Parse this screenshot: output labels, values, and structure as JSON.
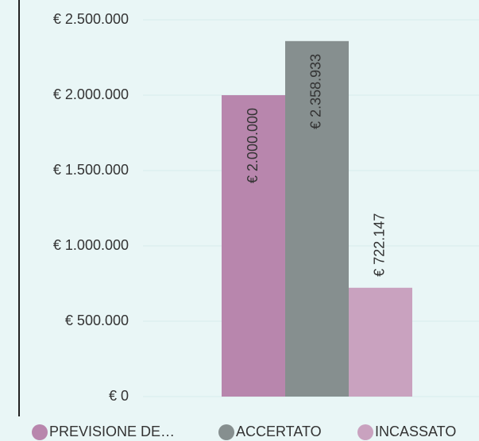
{
  "chart_data": {
    "type": "bar",
    "categories": [
      null
    ],
    "series": [
      {
        "name": "PREVISIONE DE…",
        "color": "#b886ad",
        "values": [
          2000000
        ],
        "value_labels": [
          "€ 2.000.000"
        ]
      },
      {
        "name": "ACCERTATO",
        "color": "#868f8f",
        "values": [
          2358933
        ],
        "value_labels": [
          "€ 2.358.933"
        ]
      },
      {
        "name": "INCASSATO",
        "color": "#c9a2bf",
        "values": [
          722147
        ],
        "value_labels": [
          "€ 722.147"
        ]
      }
    ],
    "ylim": [
      0,
      2500000
    ],
    "yticks": [
      {
        "value": 0,
        "label": "€ 0"
      },
      {
        "value": 500000,
        "label": "€ 500.000"
      },
      {
        "value": 1000000,
        "label": "€ 1.000.000"
      },
      {
        "value": 1500000,
        "label": "€ 1.500.000"
      },
      {
        "value": 2000000,
        "label": "€ 2.000.000"
      },
      {
        "value": 2500000,
        "label": "€ 2.500.000"
      }
    ],
    "grid": true,
    "legend": "bottom"
  }
}
